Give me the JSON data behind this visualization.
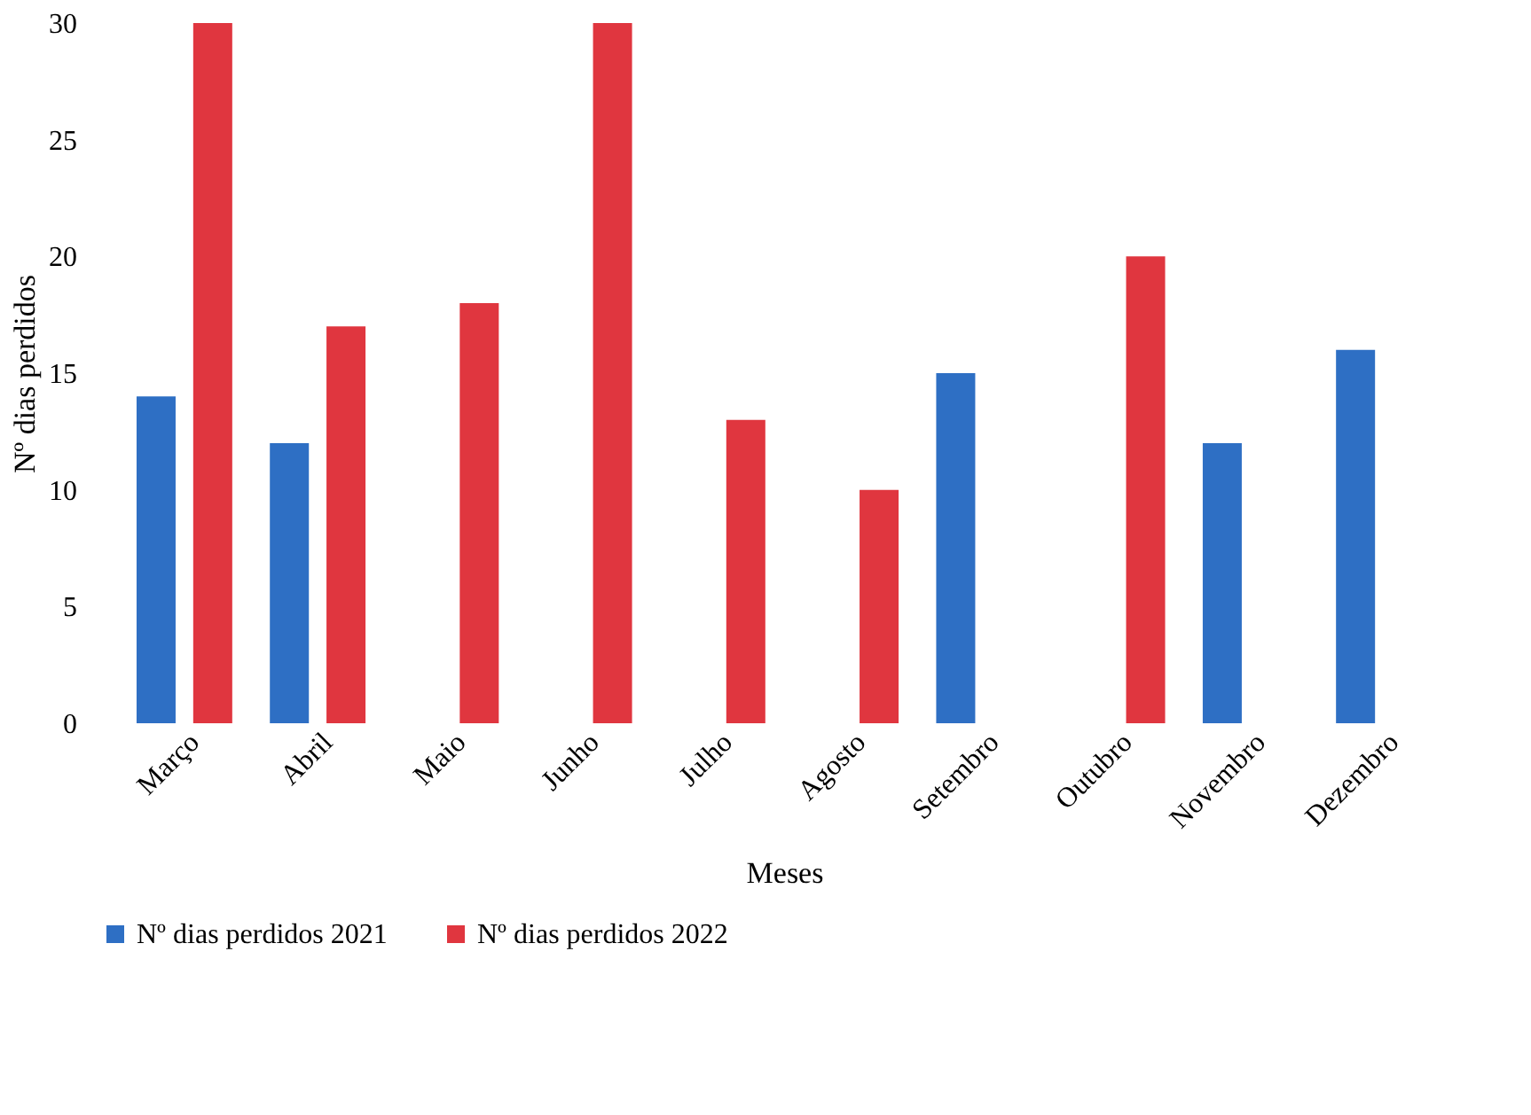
{
  "chart_data": {
    "type": "bar",
    "xlabel": "Meses",
    "ylabel": "Nº dias perdidos",
    "categories": [
      "Março",
      "Abril",
      "Maio",
      "Junho",
      "Julho",
      "Agosto",
      "Setembro",
      "Outubro",
      "Novembro",
      "Dezembro"
    ],
    "series": [
      {
        "name": "Nº dias perdidos 2021",
        "color": "#2e6fc4",
        "values": [
          14,
          12,
          0,
          0,
          0,
          0,
          15,
          0,
          12,
          16
        ]
      },
      {
        "name": "Nº dias perdidos 2022",
        "color": "#e0363f",
        "values": [
          30,
          17,
          18,
          30,
          13,
          10,
          0,
          20,
          0,
          0
        ]
      }
    ],
    "ylim": [
      0,
      30
    ],
    "yticks": [
      0,
      5,
      10,
      15,
      20,
      25,
      30
    ],
    "grid": false,
    "legend": "bottom"
  }
}
